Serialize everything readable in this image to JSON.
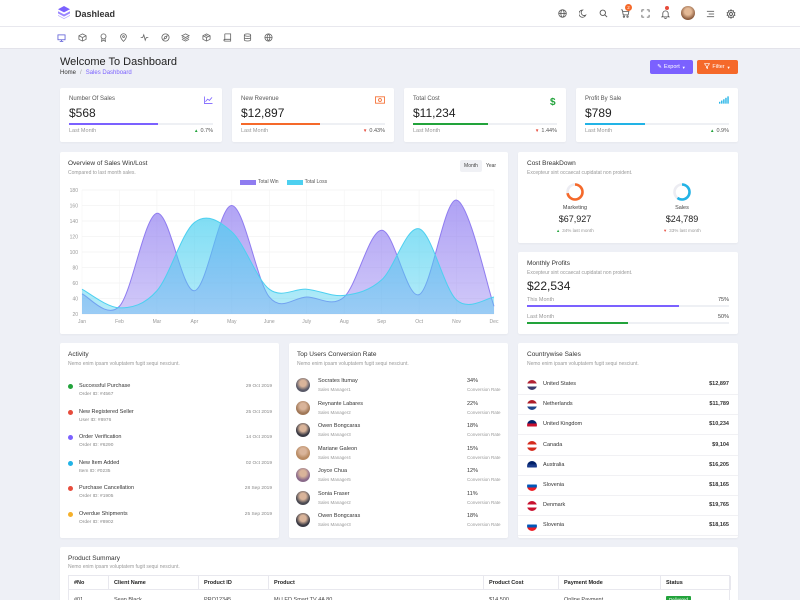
{
  "app": {
    "name": "Dashlead"
  },
  "topbar": {
    "cart_badge": "2",
    "icons": [
      "globe-icon",
      "moon-icon",
      "search-icon",
      "cart-icon",
      "fullscreen-icon",
      "bell-icon",
      "avatar",
      "menu-icon",
      "gear-icon"
    ]
  },
  "nav": {
    "icons": [
      "monitor-icon",
      "cube-icon",
      "award-icon",
      "map-pin-icon",
      "activity-icon",
      "compass-icon",
      "layers-icon",
      "box-icon",
      "book-icon",
      "database-icon",
      "globe-icon"
    ]
  },
  "page": {
    "title": "Welcome To Dashboard",
    "breadcrumb_home": "Home",
    "breadcrumb_sep": "/",
    "breadcrumb_current": "Sales Dashboard"
  },
  "buttons": {
    "export": "Export",
    "filter": "Filter"
  },
  "colors": {
    "purple": "#7b61ff",
    "orange": "#f5692a",
    "green": "#22a33b",
    "cyan": "#22b3e6",
    "red": "#e74c3c"
  },
  "kpis": [
    {
      "label": "Number Of Sales",
      "value": "$568",
      "last": "Last Month",
      "change": "0.7%",
      "direction": "up",
      "progress": 0.62,
      "color": "#7b61ff",
      "icon": "chart-line-icon"
    },
    {
      "label": "New Revenue",
      "value": "$12,897",
      "last": "Last Month",
      "change": "0.43%",
      "direction": "down",
      "progress": 0.55,
      "color": "#f5692a",
      "icon": "money-icon"
    },
    {
      "label": "Total Cost",
      "value": "$11,234",
      "last": "Last Month",
      "change": "1.44%",
      "direction": "down",
      "progress": 0.52,
      "color": "#22a33b",
      "icon": "dollar-icon"
    },
    {
      "label": "Profit By Sale",
      "value": "$789",
      "last": "Last Month",
      "change": "0.9%",
      "direction": "up",
      "progress": 0.42,
      "color": "#22b3e6",
      "icon": "bars-icon"
    }
  ],
  "overview": {
    "title": "Overview of Sales Win/Lost",
    "subtitle": "Compared to last month sales.",
    "tab_month": "Month",
    "tab_year": "Year"
  },
  "chart_data": {
    "type": "area",
    "categories": [
      "Jan",
      "Feb",
      "Mar",
      "Apr",
      "May",
      "June",
      "July",
      "Aug",
      "Sep",
      "Oct",
      "Nov",
      "Dec"
    ],
    "yticks": [
      20,
      40,
      60,
      80,
      100,
      120,
      140,
      160,
      180
    ],
    "ylim": [
      20,
      180
    ],
    "series": [
      {
        "name": "Total Win",
        "color": "#8f7cf0",
        "values": [
          46,
          30,
          150,
          50,
          160,
          42,
          42,
          42,
          128,
          45,
          167,
          30
        ]
      },
      {
        "name": "Total Loss",
        "color": "#4dd0f0",
        "values": [
          52,
          28,
          50,
          138,
          126,
          52,
          52,
          44,
          64,
          130,
          38,
          42
        ]
      }
    ]
  },
  "cost": {
    "title": "Cost BreakDown",
    "subtitle": "Excepteur sint occaecat cupidatat non proident.",
    "items": [
      {
        "label": "Marketing",
        "value": "$67,927",
        "note": "34% last month",
        "direction": "up",
        "color": "#f5692a",
        "fraction": 0.72
      },
      {
        "label": "Sales",
        "value": "$24,789",
        "note": "33% last month",
        "direction": "down",
        "color": "#22b3e6",
        "fraction": 0.6
      }
    ]
  },
  "profits": {
    "title": "Monthly Profits",
    "subtitle": "Excepteur sint occaecat cupidatat non proident.",
    "value": "$22,534",
    "rows": [
      {
        "label": "This Month",
        "pct": "75%",
        "fraction": 0.75,
        "color": "#7b61ff"
      },
      {
        "label": "Last Month",
        "pct": "50%",
        "fraction": 0.5,
        "color": "#22a33b"
      }
    ]
  },
  "activity": {
    "title": "Activity",
    "subtitle": "Nemo enim ipsam voluptatem fugit sequi nesciunt.",
    "items": [
      {
        "title": "Successful Purchase",
        "sub": "Order ID: #4567",
        "date": "29 Oct 2019",
        "color": "#22a33b"
      },
      {
        "title": "New Registered Seller",
        "sub": "User ID: #8976",
        "date": "25 Oct 2019",
        "color": "#e74c3c"
      },
      {
        "title": "Order Verification",
        "sub": "Order ID: #6290",
        "date": "14 Oct 2019",
        "color": "#7b61ff"
      },
      {
        "title": "New Item Added",
        "sub": "Item ID: #0235",
        "date": "02 Oct 2019",
        "color": "#22b3e6"
      },
      {
        "title": "Purchase Cancellation",
        "sub": "Order ID: #1905",
        "date": "28 Sep 2019",
        "color": "#e74c3c"
      },
      {
        "title": "Overdue Shipments",
        "sub": "Order ID: #8902",
        "date": "25 Sep 2019",
        "color": "#f5b02a"
      }
    ]
  },
  "users": {
    "title": "Top Users Conversion Rate",
    "subtitle": "Nemo enim ipsam voluptatem fugit sequi nesciunt.",
    "rate_label": "Conversion Rate",
    "items": [
      {
        "name": "Socrates Itumay",
        "role": "Sales Manager1",
        "pct": "34%",
        "avatar": "#5a5a68"
      },
      {
        "name": "Reynante Labares",
        "role": "Sales Manager2",
        "pct": "22%",
        "avatar": "#a07858"
      },
      {
        "name": "Owen Bongcaras",
        "role": "Sales Manager3",
        "pct": "18%",
        "avatar": "#3a3a44"
      },
      {
        "name": "Mariane Galeon",
        "role": "Sales Manager4",
        "pct": "15%",
        "avatar": "#b88a62"
      },
      {
        "name": "Joyce Chua",
        "role": "Sales Manager5",
        "pct": "12%",
        "avatar": "#8a6a8a"
      },
      {
        "name": "Sonia Fraser",
        "role": "Sales Manager2",
        "pct": "11%",
        "avatar": "#4a4a52"
      },
      {
        "name": "Owen Bongcaras",
        "role": "Sales Manager3",
        "pct": "18%",
        "avatar": "#3a3a44"
      }
    ]
  },
  "countries": {
    "title": "Countrywise Sales",
    "subtitle": "Nemo enim ipsam voluptatem fugit sequi nesciunt.",
    "items": [
      {
        "name": "United States",
        "value": "$12,897",
        "flag": [
          "#b22234",
          "#ffffff",
          "#3c3b6e"
        ]
      },
      {
        "name": "Netherlands",
        "value": "$11,789",
        "flag": [
          "#ae1c28",
          "#ffffff",
          "#21468b"
        ]
      },
      {
        "name": "United Kingdom",
        "value": "$10,234",
        "flag": [
          "#012169",
          "#c8102e",
          "#ffffff"
        ]
      },
      {
        "name": "Canada",
        "value": "$9,104",
        "flag": [
          "#d52b1e",
          "#ffffff",
          "#d52b1e"
        ]
      },
      {
        "name": "Australia",
        "value": "$16,205",
        "flag": [
          "#012169",
          "#1a3a8a",
          "#ffffff"
        ]
      },
      {
        "name": "Slovenia",
        "value": "$18,165",
        "flag": [
          "#ffffff",
          "#0057b8",
          "#ed1c24"
        ]
      },
      {
        "name": "Denmark",
        "value": "$19,765",
        "flag": [
          "#c8102e",
          "#ffffff",
          "#c8102e"
        ]
      },
      {
        "name": "Slovenia",
        "value": "$18,165",
        "flag": [
          "#ffffff",
          "#0057b8",
          "#ed1c24"
        ]
      }
    ]
  },
  "summary": {
    "title": "Product Summary",
    "subtitle": "Nemo enim ipsam voluptatem fugit sequi nesciunt.",
    "columns": [
      "#No",
      "Client Name",
      "Product ID",
      "Product",
      "Product Cost",
      "Payment Mode",
      "Status"
    ],
    "rows": [
      {
        "no": "#01",
        "client": "Sean Black",
        "pid": "PRO12345",
        "product": "Mi LED Smart TV 4A 80",
        "cost": "$14,500",
        "mode": "Online Payment",
        "status": "Delivered"
      }
    ]
  }
}
